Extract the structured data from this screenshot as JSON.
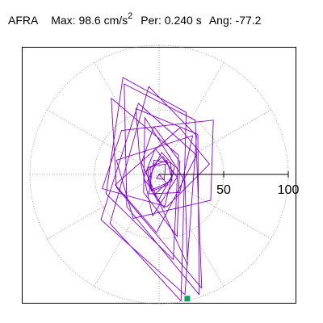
{
  "header": {
    "station": "AFRA",
    "max_label": "Max:",
    "max_value": "98.6 cm/s",
    "max_exponent": "2",
    "per_label": "Per:",
    "per_value": "0.240 s",
    "ang_label": "Ang:",
    "ang_value": "-77.2"
  },
  "chart_data": {
    "type": "scatter",
    "title": "AFRA",
    "plot_kind": "polar hodogram (particle motion)",
    "units": "cm/s2",
    "radial_ticks": [
      50,
      100
    ],
    "radial_tick_labels": [
      "50",
      "100"
    ],
    "rmax": 100,
    "angular_gridlines_deg": [
      0,
      30,
      60,
      90,
      120,
      150,
      180,
      210,
      240,
      270,
      300,
      330
    ],
    "max_amplitude": 98.6,
    "max_angle_deg": -77.2,
    "grid": true,
    "series": [
      {
        "color": "#8000d0",
        "trace_points": [
          [
            0,
            0
          ],
          [
            7,
            -8
          ],
          [
            -6,
            -13
          ],
          [
            -9,
            5
          ],
          [
            6,
            11
          ],
          [
            10,
            -3
          ],
          [
            -4,
            -16
          ],
          [
            -10,
            2
          ],
          [
            3,
            14
          ],
          [
            11,
            1
          ],
          [
            -1,
            -21
          ],
          [
            -9,
            -5
          ],
          [
            2,
            17
          ],
          [
            12,
            6
          ],
          [
            4,
            -26
          ],
          [
            -12,
            -3
          ],
          [
            -3,
            20
          ],
          [
            14,
            -2
          ],
          [
            -5,
            -32
          ],
          [
            -14,
            8
          ],
          [
            -4,
            37
          ],
          [
            16,
            10
          ],
          [
            14,
            -48
          ],
          [
            -12,
            -14
          ],
          [
            -11,
            44
          ],
          [
            20,
            -5
          ],
          [
            22,
            -70
          ],
          [
            -15,
            12
          ],
          [
            -18,
            51
          ],
          [
            30,
            31
          ],
          [
            31,
            -93
          ],
          [
            -25,
            -25
          ],
          [
            -27,
            70
          ],
          [
            28,
            42
          ],
          [
            33,
            -88
          ],
          [
            -33,
            -10
          ],
          [
            -37,
            59
          ],
          [
            15,
            15
          ],
          [
            11,
            -66
          ],
          [
            -41,
            -15
          ],
          [
            -28,
            75
          ],
          [
            21,
            48
          ],
          [
            17,
            -98
          ],
          [
            -38,
            -38
          ],
          [
            -8,
            68
          ],
          [
            29,
            30
          ],
          [
            20,
            -93
          ],
          [
            -45,
            -35
          ],
          [
            -16,
            55
          ],
          [
            29,
            15
          ],
          [
            -2,
            -45
          ],
          [
            -34,
            -8
          ],
          [
            16,
            36
          ],
          [
            39,
            8
          ],
          [
            6,
            -25
          ],
          [
            -44,
            -11
          ],
          [
            -29,
            34
          ],
          [
            42,
            42
          ],
          [
            40,
            -20
          ],
          [
            -20,
            -34
          ],
          [
            -33,
            11
          ],
          [
            26,
            30
          ],
          [
            16,
            -14
          ],
          [
            -8,
            -15
          ],
          [
            -4,
            11
          ],
          [
            9,
            9
          ],
          [
            10,
            -5
          ],
          [
            -6,
            -12
          ],
          [
            -7,
            6
          ],
          [
            5,
            8
          ],
          [
            4,
            -4
          ],
          [
            -2,
            -3
          ],
          [
            0,
            0
          ]
        ]
      }
    ],
    "max_marker": {
      "color": "#12a060",
      "amplitude": 98.6,
      "angle_deg": -77.2
    }
  }
}
